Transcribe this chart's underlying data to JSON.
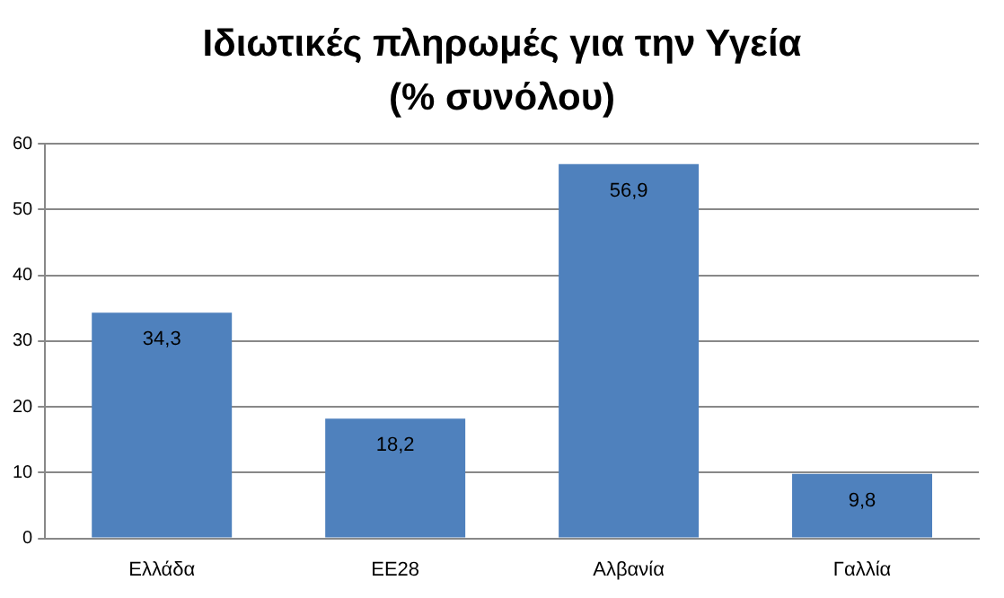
{
  "chart_data": {
    "type": "bar",
    "title": "Ιδιωτικές πληρωμές για την Υγεία\n(% συνόλου)",
    "categories": [
      "Ελλάδα",
      "ΕΕ28",
      "Αλβανία",
      "Γαλλία"
    ],
    "values": [
      34.3,
      18.2,
      56.9,
      9.8
    ],
    "value_labels": [
      "34,3",
      "18,2",
      "56,9",
      "9,8"
    ],
    "color": "#4f81bd",
    "ylim": [
      0,
      60
    ],
    "yticks": [
      0,
      10,
      20,
      30,
      40,
      50,
      60
    ],
    "grid": "y",
    "legend": false
  }
}
